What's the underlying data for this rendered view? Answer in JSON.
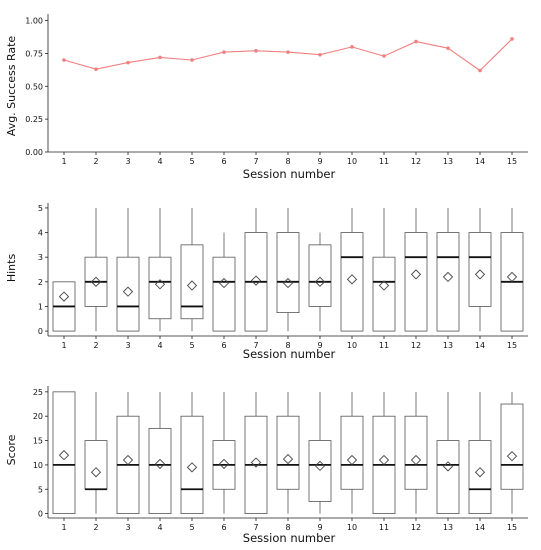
{
  "chart_data": [
    {
      "type": "line",
      "xlabel": "Session number",
      "ylabel": "Avg. Success Rate",
      "x": [
        1,
        2,
        3,
        4,
        5,
        6,
        7,
        8,
        9,
        10,
        11,
        12,
        13,
        14,
        15
      ],
      "values": [
        0.7,
        0.63,
        0.68,
        0.72,
        0.7,
        0.76,
        0.77,
        0.76,
        0.74,
        0.8,
        0.73,
        0.84,
        0.79,
        0.62,
        0.86
      ],
      "ylim": [
        0,
        1
      ],
      "yticks": [
        "0.00",
        "0.25",
        "0.50",
        "0.75",
        "1.00"
      ],
      "color": "#f08080",
      "grid": false
    },
    {
      "type": "boxplot",
      "xlabel": "Session number",
      "ylabel": "Hints",
      "x": [
        1,
        2,
        3,
        4,
        5,
        6,
        7,
        8,
        9,
        10,
        11,
        12,
        13,
        14,
        15
      ],
      "ylim": [
        0,
        5
      ],
      "yticks": [
        "0",
        "1",
        "2",
        "3",
        "4",
        "5"
      ],
      "boxes": [
        {
          "min": 0,
          "q1": 0,
          "median": 1,
          "q3": 2,
          "max": 2,
          "mean": 1.4
        },
        {
          "min": 0,
          "q1": 1,
          "median": 2,
          "q3": 3,
          "max": 5,
          "mean": 2.0
        },
        {
          "min": 0,
          "q1": 0,
          "median": 1,
          "q3": 3,
          "max": 5,
          "mean": 1.6
        },
        {
          "min": 0,
          "q1": 0.5,
          "median": 2,
          "q3": 3,
          "max": 5,
          "mean": 1.9
        },
        {
          "min": 0,
          "q1": 0.5,
          "median": 1,
          "q3": 3.5,
          "max": 5,
          "mean": 1.85
        },
        {
          "min": 0,
          "q1": 0,
          "median": 2,
          "q3": 3,
          "max": 4,
          "mean": 1.95
        },
        {
          "min": 0,
          "q1": 0,
          "median": 2,
          "q3": 4,
          "max": 5,
          "mean": 2.05
        },
        {
          "min": 0,
          "q1": 0.75,
          "median": 2,
          "q3": 4,
          "max": 5,
          "mean": 1.95
        },
        {
          "min": 0,
          "q1": 1,
          "median": 2,
          "q3": 3.5,
          "max": 4,
          "mean": 2.0
        },
        {
          "min": 0,
          "q1": 0,
          "median": 3,
          "q3": 4,
          "max": 5,
          "mean": 2.1
        },
        {
          "min": 0,
          "q1": 0,
          "median": 2,
          "q3": 3,
          "max": 5,
          "mean": 1.85
        },
        {
          "min": 0,
          "q1": 0,
          "median": 3,
          "q3": 4,
          "max": 5,
          "mean": 2.3
        },
        {
          "min": 0,
          "q1": 0,
          "median": 3,
          "q3": 4,
          "max": 5,
          "mean": 2.2
        },
        {
          "min": 0,
          "q1": 1,
          "median": 3,
          "q3": 4,
          "max": 5,
          "mean": 2.3
        },
        {
          "min": 0,
          "q1": 0,
          "median": 2,
          "q3": 4,
          "max": 5,
          "mean": 2.2
        }
      ]
    },
    {
      "type": "boxplot",
      "xlabel": "Session number",
      "ylabel": "Score",
      "x": [
        1,
        2,
        3,
        4,
        5,
        6,
        7,
        8,
        9,
        10,
        11,
        12,
        13,
        14,
        15
      ],
      "ylim": [
        0,
        25
      ],
      "yticks": [
        "0",
        "5",
        "10",
        "15",
        "20",
        "25"
      ],
      "boxes": [
        {
          "min": 0,
          "q1": 0,
          "median": 10,
          "q3": 25,
          "max": 25,
          "mean": 12
        },
        {
          "min": 0,
          "q1": 5,
          "median": 5,
          "q3": 15,
          "max": 25,
          "mean": 8.5
        },
        {
          "min": 0,
          "q1": 0,
          "median": 10,
          "q3": 20,
          "max": 25,
          "mean": 11
        },
        {
          "min": 0,
          "q1": 0,
          "median": 10,
          "q3": 17.5,
          "max": 25,
          "mean": 10.2
        },
        {
          "min": 0,
          "q1": 0,
          "median": 5,
          "q3": 20,
          "max": 25,
          "mean": 9.5
        },
        {
          "min": 0,
          "q1": 5,
          "median": 10,
          "q3": 15,
          "max": 25,
          "mean": 10.2
        },
        {
          "min": 0,
          "q1": 0,
          "median": 10,
          "q3": 20,
          "max": 25,
          "mean": 10.5
        },
        {
          "min": 0,
          "q1": 5,
          "median": 10,
          "q3": 20,
          "max": 25,
          "mean": 11.2
        },
        {
          "min": 0,
          "q1": 2.5,
          "median": 10,
          "q3": 15,
          "max": 25,
          "mean": 9.8
        },
        {
          "min": 0,
          "q1": 5,
          "median": 10,
          "q3": 20,
          "max": 25,
          "mean": 11
        },
        {
          "min": 0,
          "q1": 0,
          "median": 10,
          "q3": 20,
          "max": 25,
          "mean": 11
        },
        {
          "min": 0,
          "q1": 5,
          "median": 10,
          "q3": 20,
          "max": 25,
          "mean": 11
        },
        {
          "min": 0,
          "q1": 0,
          "median": 10,
          "q3": 15,
          "max": 25,
          "mean": 9.7
        },
        {
          "min": 0,
          "q1": 0,
          "median": 5,
          "q3": 15,
          "max": 25,
          "mean": 8.5
        },
        {
          "min": 0,
          "q1": 5,
          "median": 10,
          "q3": 22.5,
          "max": 25,
          "mean": 11.8
        }
      ]
    }
  ]
}
